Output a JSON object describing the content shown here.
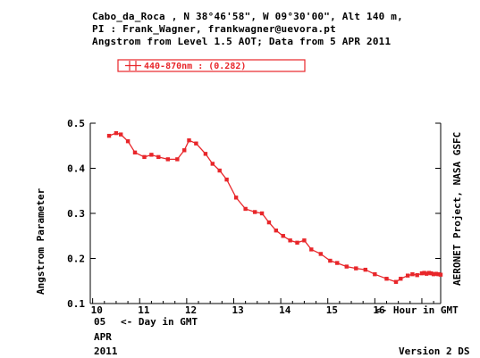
{
  "header": {
    "line1": "Cabo_da_Roca , N 38°46'58\", W 09°30'00\", Alt 140 m,",
    "line2": "PI : Frank_Wagner, frankwagner@uevora.pt",
    "line3": "Angstrom from Level 1.5 AOT; Data from 5 APR 2011"
  },
  "colors": {
    "series": "#e8262a",
    "axis": "#000000"
  },
  "chart_data": {
    "type": "line",
    "xlabel": "<- Hour in GMT",
    "ylabel": "Angstrom Parameter",
    "right_label": "AERONET Project, NASA GSFC",
    "xlim": [
      9.95,
      17.4
    ],
    "ylim": [
      0.1,
      0.5
    ],
    "x_ticks": [
      10,
      11,
      12,
      13,
      14,
      15,
      16
    ],
    "x_tick_labels": [
      "10",
      "11",
      "12",
      "13",
      "14",
      "15",
      "16"
    ],
    "y_ticks": [
      0.1,
      0.2,
      0.3,
      0.4,
      0.5
    ],
    "y_tick_labels": [
      "0.1",
      "0.2",
      "0.3",
      "0.4",
      "0.5"
    ],
    "date_day": "05",
    "date_day_label": "<- Day in GMT",
    "date_month": "APR",
    "date_year": "2011",
    "version": "Version 2 DS",
    "series": [
      {
        "name": "440-870nm",
        "legend_text": "440-870nm  : (0.282)",
        "x": [
          10.35,
          10.5,
          10.6,
          10.75,
          10.9,
          11.1,
          11.25,
          11.4,
          11.6,
          11.8,
          11.95,
          12.05,
          12.2,
          12.4,
          12.55,
          12.7,
          12.85,
          13.05,
          13.25,
          13.45,
          13.6,
          13.75,
          13.9,
          14.05,
          14.2,
          14.35,
          14.5,
          14.65,
          14.85,
          15.05,
          15.2,
          15.4,
          15.6,
          15.8,
          16.0,
          16.25,
          16.45,
          16.55,
          16.7,
          16.8,
          16.9,
          17.0,
          17.05,
          17.1,
          17.15,
          17.2,
          17.25,
          17.3,
          17.35,
          17.4
        ],
        "y": [
          0.472,
          0.478,
          0.475,
          0.46,
          0.435,
          0.425,
          0.43,
          0.425,
          0.42,
          0.42,
          0.44,
          0.462,
          0.455,
          0.432,
          0.41,
          0.395,
          0.375,
          0.335,
          0.31,
          0.303,
          0.3,
          0.28,
          0.262,
          0.25,
          0.24,
          0.235,
          0.24,
          0.22,
          0.21,
          0.195,
          0.19,
          0.182,
          0.178,
          0.175,
          0.165,
          0.155,
          0.148,
          0.155,
          0.162,
          0.165,
          0.163,
          0.167,
          0.168,
          0.166,
          0.168,
          0.167,
          0.165,
          0.166,
          0.165,
          0.164
        ]
      }
    ]
  }
}
